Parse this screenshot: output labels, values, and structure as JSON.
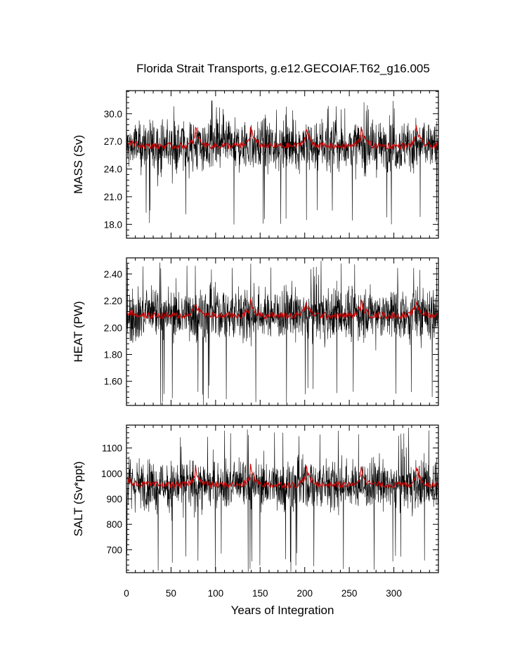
{
  "chart_data": {
    "type": "line",
    "title": "Florida Strait Transports, g.e12.GECOIAF.T62_g16.005",
    "xlabel": "Years of Integration",
    "xlim": [
      0,
      350
    ],
    "xticks": [
      "0",
      "50",
      "100",
      "150",
      "200",
      "250",
      "300"
    ],
    "colors": {
      "raw": "#000000",
      "smoothed": "#cc0000"
    },
    "segment_starts": [
      0,
      77,
      139,
      201,
      263,
      325
    ],
    "panels": [
      {
        "ylabel": "MASS (Sv)",
        "ylim": [
          16.5,
          32.5
        ],
        "yticks": [
          "18.0",
          "21.0",
          "24.0",
          "27.0",
          "30.0"
        ],
        "series": [
          {
            "kind": "raw",
            "mean": 26.5,
            "spread": 1.4,
            "max": 31.5,
            "min": 17.5
          },
          {
            "kind": "smoothed",
            "mean": 26.5,
            "segment_start_value": 28.8,
            "segment_end_value": 27.3
          }
        ]
      },
      {
        "ylabel": "HEAT (PW)",
        "ylim": [
          1.42,
          2.52
        ],
        "yticks": [
          "1.60",
          "1.80",
          "2.00",
          "2.20",
          "2.40"
        ],
        "series": [
          {
            "kind": "raw",
            "mean": 2.1,
            "spread": 0.1,
            "max": 2.5,
            "min": 1.42
          },
          {
            "kind": "smoothed",
            "mean": 2.09,
            "segment_start_value": 2.2,
            "segment_end_value": 2.15
          }
        ]
      },
      {
        "ylabel": "SALT (Sv*ppt)",
        "ylim": [
          610,
          1190
        ],
        "yticks": [
          "700",
          "800",
          "900",
          "1000",
          "1100"
        ],
        "series": [
          {
            "kind": "raw",
            "mean": 955,
            "spread": 50,
            "max": 1180,
            "min": 612
          },
          {
            "kind": "smoothed",
            "mean": 955,
            "segment_start_value": 1035,
            "segment_end_value": 985
          }
        ]
      }
    ]
  }
}
